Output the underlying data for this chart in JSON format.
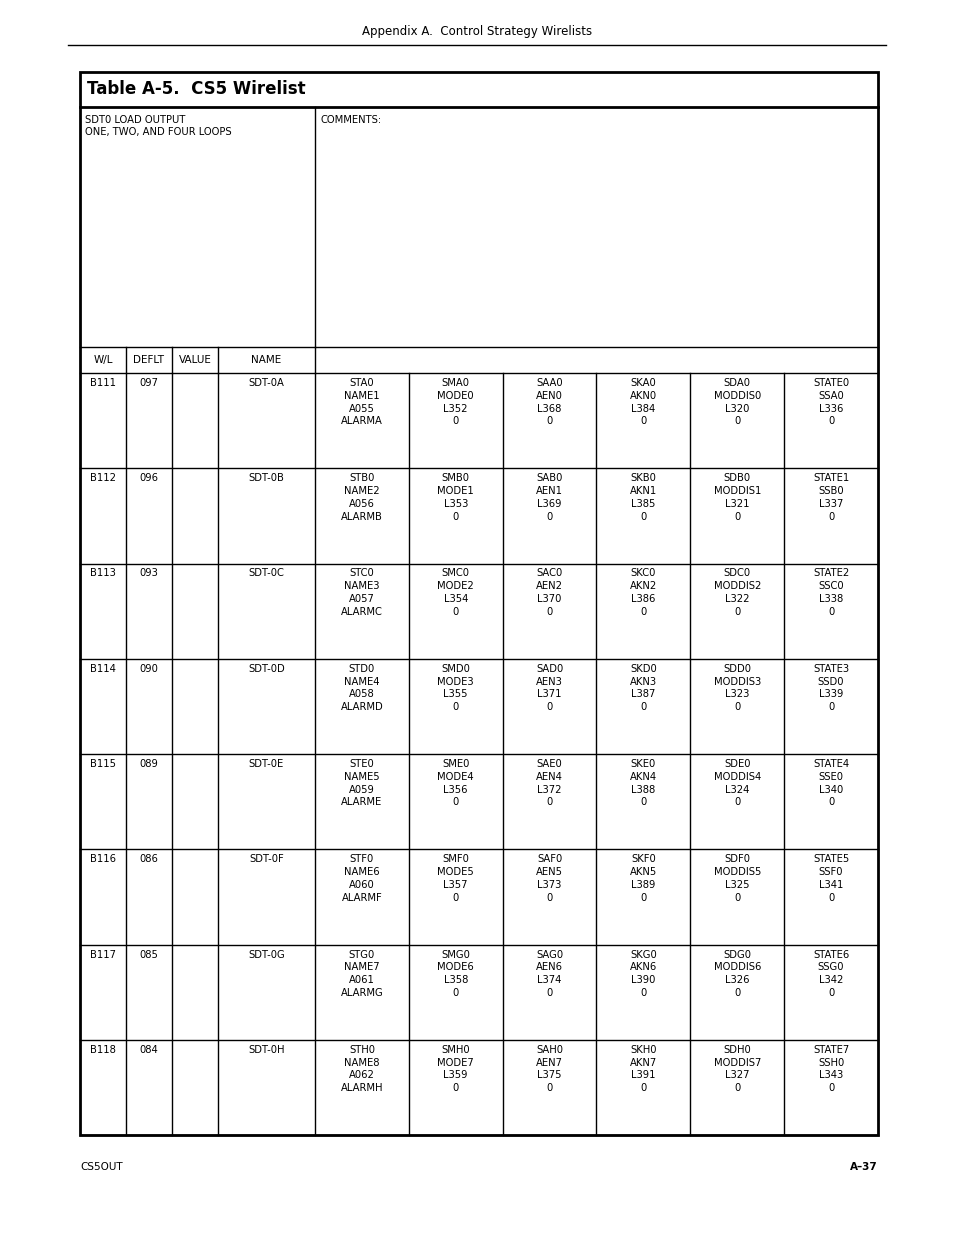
{
  "page_title": "Appendix A.  Control Strategy Wirelists",
  "table_title": "Table A-5.  CS5 Wirelist",
  "top_left_cell": "SDT0 LOAD OUTPUT\nONE, TWO, AND FOUR LOOPS",
  "top_right_cell": "COMMENTS:",
  "header_row": [
    "W/L",
    "DEFLT",
    "VALUE",
    "NAME"
  ],
  "data_rows": [
    {
      "wl": "B111",
      "deflt": "097",
      "value": "",
      "name": "SDT-0A",
      "cols": [
        "STA0\nNAME1\nA055\nALARMA",
        "SMA0\nMODE0\nL352\n0",
        "SAA0\nAEN0\nL368\n0",
        "SKA0\nAKN0\nL384\n0",
        "SDA0\nMODDIS0\nL320\n0",
        "STATE0\nSSA0\nL336\n0"
      ]
    },
    {
      "wl": "B112",
      "deflt": "096",
      "value": "",
      "name": "SDT-0B",
      "cols": [
        "STB0\nNAME2\nA056\nALARMB",
        "SMB0\nMODE1\nL353\n0",
        "SAB0\nAEN1\nL369\n0",
        "SKB0\nAKN1\nL385\n0",
        "SDB0\nMODDIS1\nL321\n0",
        "STATE1\nSSB0\nL337\n0"
      ]
    },
    {
      "wl": "B113",
      "deflt": "093",
      "value": "",
      "name": "SDT-0C",
      "cols": [
        "STC0\nNAME3\nA057\nALARMC",
        "SMC0\nMODE2\nL354\n0",
        "SAC0\nAEN2\nL370\n0",
        "SKC0\nAKN2\nL386\n0",
        "SDC0\nMODDIS2\nL322\n0",
        "STATE2\nSSC0\nL338\n0"
      ]
    },
    {
      "wl": "B114",
      "deflt": "090",
      "value": "",
      "name": "SDT-0D",
      "cols": [
        "STD0\nNAME4\nA058\nALARMD",
        "SMD0\nMODE3\nL355\n0",
        "SAD0\nAEN3\nL371\n0",
        "SKD0\nAKN3\nL387\n0",
        "SDD0\nMODDIS3\nL323\n0",
        "STATE3\nSSD0\nL339\n0"
      ]
    },
    {
      "wl": "B115",
      "deflt": "089",
      "value": "",
      "name": "SDT-0E",
      "cols": [
        "STE0\nNAME5\nA059\nALARME",
        "SME0\nMODE4\nL356\n0",
        "SAE0\nAEN4\nL372\n0",
        "SKE0\nAKN4\nL388\n0",
        "SDE0\nMODDIS4\nL324\n0",
        "STATE4\nSSE0\nL340\n0"
      ]
    },
    {
      "wl": "B116",
      "deflt": "086",
      "value": "",
      "name": "SDT-0F",
      "cols": [
        "STF0\nNAME6\nA060\nALARMF",
        "SMF0\nMODE5\nL357\n0",
        "SAF0\nAEN5\nL373\n0",
        "SKF0\nAKN5\nL389\n0",
        "SDF0\nMODDIS5\nL325\n0",
        "STATE5\nSSF0\nL341\n0"
      ]
    },
    {
      "wl": "B117",
      "deflt": "085",
      "value": "",
      "name": "SDT-0G",
      "cols": [
        "STG0\nNAME7\nA061\nALARMG",
        "SMG0\nMODE6\nL358\n0",
        "SAG0\nAEN6\nL374\n0",
        "SKG0\nAKN6\nL390\n0",
        "SDG0\nMODDIS6\nL326\n0",
        "STATE6\nSSG0\nL342\n0"
      ]
    },
    {
      "wl": "B118",
      "deflt": "084",
      "value": "",
      "name": "SDT-0H",
      "cols": [
        "STH0\nNAME8\nA062\nALARMH",
        "SMH0\nMODE7\nL359\n0",
        "SAH0\nAEN7\nL375\n0",
        "SKH0\nAKN7\nL391\n0",
        "SDH0\nMODDIS7\nL327\n0",
        "STATE7\nSSH0\nL343\n0"
      ]
    }
  ],
  "footer_left": "CS5OUT",
  "footer_right": "A–37",
  "background": "#ffffff",
  "fs_page_title": 8.5,
  "fs_table_title": 12,
  "fs_cell": 7.2,
  "fs_header": 7.5,
  "fs_footer": 7.5
}
